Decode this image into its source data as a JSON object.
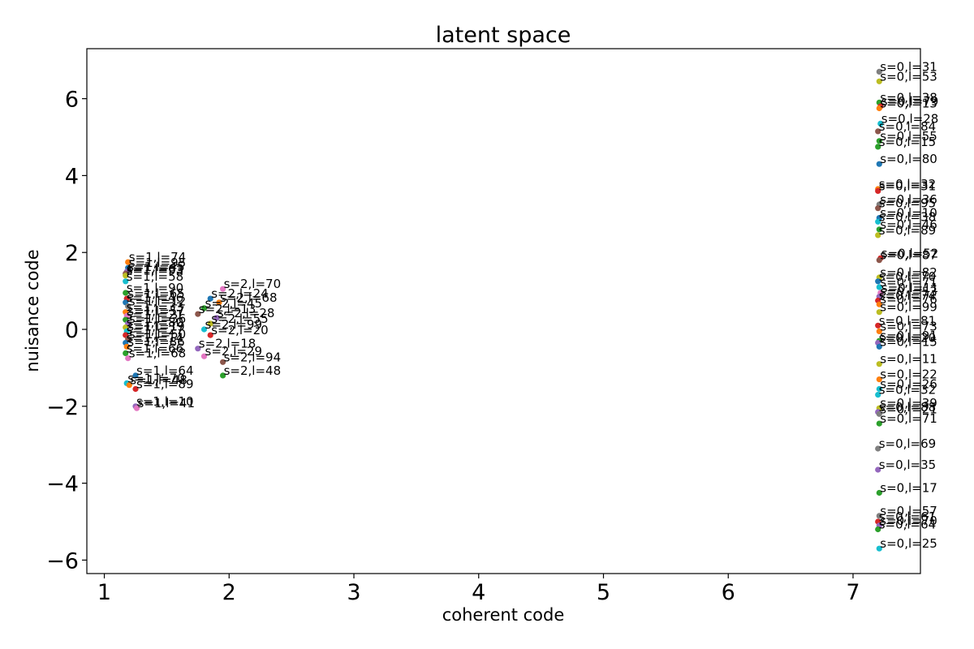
{
  "chart_data": {
    "type": "scatter",
    "title": "latent space",
    "xlabel": "coherent code",
    "ylabel": "nuisance code",
    "xlim": [
      0.86,
      7.54
    ],
    "ylim": [
      -6.35,
      7.3
    ],
    "xticks": [
      1,
      2,
      3,
      4,
      5,
      6,
      7
    ],
    "yticks": [
      -6,
      -4,
      -2,
      0,
      2,
      4,
      6
    ],
    "ytick_labels": [
      "−6",
      "−4",
      "−2",
      "0",
      "2",
      "4",
      "6"
    ],
    "grid": false,
    "points": [
      {
        "x": 1.19,
        "y": 1.75,
        "label": "s=1,l=74",
        "color": "#ff7f0e"
      },
      {
        "x": 1.19,
        "y": 1.6,
        "label": "s=1,l=95",
        "color": "#1f77b4"
      },
      {
        "x": 1.18,
        "y": 1.5,
        "label": "s=1,l=45",
        "color": "#9467bd"
      },
      {
        "x": 1.17,
        "y": 1.45,
        "label": "s=1,l=63",
        "color": "#8c564b"
      },
      {
        "x": 1.17,
        "y": 1.4,
        "label": "s=1,l=93",
        "color": "#bcbd22"
      },
      {
        "x": 1.17,
        "y": 1.25,
        "label": "s=1,l=58",
        "color": "#17becf"
      },
      {
        "x": 1.17,
        "y": 0.95,
        "label": "s=1,l=90",
        "color": "#2ca02c"
      },
      {
        "x": 1.18,
        "y": 0.8,
        "label": "s=1,l=65",
        "color": "#d62728"
      },
      {
        "x": 1.17,
        "y": 0.7,
        "label": "s=1,l=46",
        "color": "#1f77b4"
      },
      {
        "x": 1.19,
        "y": 0.6,
        "label": "s=1,l=12",
        "color": "#7f7f7f"
      },
      {
        "x": 1.17,
        "y": 0.45,
        "label": "s=1,l=33",
        "color": "#ff7f0e"
      },
      {
        "x": 1.18,
        "y": 0.35,
        "label": "s=1,l=57",
        "color": "#e377c2"
      },
      {
        "x": 1.17,
        "y": 0.25,
        "label": "s=1,l=21",
        "color": "#2ca02c"
      },
      {
        "x": 1.19,
        "y": 0.15,
        "label": "s=1,l=36",
        "color": "#9467bd"
      },
      {
        "x": 1.17,
        "y": 0.05,
        "label": "s=1,l=80",
        "color": "#bcbd22"
      },
      {
        "x": 1.18,
        "y": -0.05,
        "label": "s=1,l=19",
        "color": "#17becf"
      },
      {
        "x": 1.17,
        "y": -0.15,
        "label": "s=1,l=27",
        "color": "#d62728"
      },
      {
        "x": 1.19,
        "y": -0.25,
        "label": "s=1,l=50",
        "color": "#8c564b"
      },
      {
        "x": 1.17,
        "y": -0.35,
        "label": "s=1,l=14",
        "color": "#1f77b4"
      },
      {
        "x": 1.18,
        "y": -0.45,
        "label": "s=1,l=86",
        "color": "#ff7f0e"
      },
      {
        "x": 1.17,
        "y": -0.62,
        "label": "s=1,l=66",
        "color": "#2ca02c"
      },
      {
        "x": 1.19,
        "y": -0.75,
        "label": "s=1,l=68",
        "color": "#e377c2"
      },
      {
        "x": 1.25,
        "y": -1.2,
        "label": "s=1,l=64",
        "color": "#1f77b4"
      },
      {
        "x": 1.18,
        "y": -1.4,
        "label": "s=1,l=70",
        "color": "#17becf"
      },
      {
        "x": 1.2,
        "y": -1.45,
        "label": "s=1,l=48",
        "color": "#ff7f0e"
      },
      {
        "x": 1.25,
        "y": -1.55,
        "label": "s=1,l=89",
        "color": "#d62728"
      },
      {
        "x": 1.25,
        "y": -2.0,
        "label": "s=1,l=10",
        "color": "#9467bd"
      },
      {
        "x": 1.26,
        "y": -2.05,
        "label": "s=1,l=41",
        "color": "#e377c2"
      },
      {
        "x": 1.95,
        "y": 1.05,
        "label": "s=2,l=70",
        "color": "#e377c2"
      },
      {
        "x": 1.85,
        "y": 0.8,
        "label": "s=2,l=24",
        "color": "#1f77b4"
      },
      {
        "x": 1.92,
        "y": 0.7,
        "label": "s=2,l=68",
        "color": "#ff7f0e"
      },
      {
        "x": 1.8,
        "y": 0.55,
        "label": "s=2,l=45",
        "color": "#2ca02c"
      },
      {
        "x": 1.75,
        "y": 0.4,
        "label": "s=2,l=13",
        "color": "#8c564b"
      },
      {
        "x": 1.9,
        "y": 0.3,
        "label": "s=2,l=28",
        "color": "#9467bd"
      },
      {
        "x": 1.85,
        "y": 0.15,
        "label": "s=2,l=55",
        "color": "#bcbd22"
      },
      {
        "x": 1.8,
        "y": 0.0,
        "label": "s=2,l=99",
        "color": "#17becf"
      },
      {
        "x": 1.85,
        "y": -0.15,
        "label": "s=2,l=20",
        "color": "#d62728"
      },
      {
        "x": 1.75,
        "y": -0.5,
        "label": "s=2,l=18",
        "color": "#9467bd"
      },
      {
        "x": 1.8,
        "y": -0.7,
        "label": "s=2,l=29",
        "color": "#e377c2"
      },
      {
        "x": 1.95,
        "y": -0.85,
        "label": "s=2,l=94",
        "color": "#8c564b"
      },
      {
        "x": 1.95,
        "y": -1.2,
        "label": "s=2,l=48",
        "color": "#2ca02c"
      },
      {
        "x": 7.21,
        "y": 6.7,
        "label": "s=0,l=31",
        "color": "#7f7f7f"
      },
      {
        "x": 7.21,
        "y": 6.45,
        "label": "s=0,l=53",
        "color": "#bcbd22"
      },
      {
        "x": 7.21,
        "y": 5.9,
        "label": "s=0,l=38",
        "color": "#2ca02c"
      },
      {
        "x": 7.22,
        "y": 5.8,
        "label": "s=0,l=79",
        "color": "#d62728"
      },
      {
        "x": 7.21,
        "y": 5.75,
        "label": "s=0,l=13",
        "color": "#ff7f0e"
      },
      {
        "x": 7.22,
        "y": 5.35,
        "label": "s=0,l=28",
        "color": "#17becf"
      },
      {
        "x": 7.2,
        "y": 5.15,
        "label": "s=0,l=84",
        "color": "#8c564b"
      },
      {
        "x": 7.21,
        "y": 4.9,
        "label": "s=0,l=55",
        "color": "#2ca02c"
      },
      {
        "x": 7.2,
        "y": 4.75,
        "label": "s=0,l=15",
        "color": "#2ca02c"
      },
      {
        "x": 7.21,
        "y": 4.3,
        "label": "s=0,l=80",
        "color": "#1f77b4"
      },
      {
        "x": 7.2,
        "y": 3.65,
        "label": "s=0,l=32",
        "color": "#ff7f0e"
      },
      {
        "x": 7.2,
        "y": 3.6,
        "label": "s=0,l=31",
        "color": "#d62728"
      },
      {
        "x": 7.21,
        "y": 3.25,
        "label": "s=0,l=36",
        "color": "#7f7f7f"
      },
      {
        "x": 7.2,
        "y": 3.15,
        "label": "s=0,l=95",
        "color": "#8c564b"
      },
      {
        "x": 7.21,
        "y": 2.9,
        "label": "s=0,l=10",
        "color": "#1f77b4"
      },
      {
        "x": 7.2,
        "y": 2.8,
        "label": "s=0,l=38",
        "color": "#17becf"
      },
      {
        "x": 7.21,
        "y": 2.6,
        "label": "s=0,l=46",
        "color": "#2ca02c"
      },
      {
        "x": 7.2,
        "y": 2.45,
        "label": "s=0,l=89",
        "color": "#bcbd22"
      },
      {
        "x": 7.22,
        "y": 1.85,
        "label": "s=0,l=52",
        "color": "#d62728"
      },
      {
        "x": 7.21,
        "y": 1.8,
        "label": "s=0,l=87",
        "color": "#8c564b"
      },
      {
        "x": 7.21,
        "y": 1.35,
        "label": "s=0,l=82",
        "color": "#bcbd22"
      },
      {
        "x": 7.2,
        "y": 1.25,
        "label": "s=0,l=70",
        "color": "#1f77b4"
      },
      {
        "x": 7.21,
        "y": 1.1,
        "label": "s=0,l=71",
        "color": "#17becf"
      },
      {
        "x": 7.22,
        "y": 0.95,
        "label": "s=0,l=11",
        "color": "#e377c2"
      },
      {
        "x": 7.21,
        "y": 0.85,
        "label": "s=0,l=53",
        "color": "#9467bd"
      },
      {
        "x": 7.2,
        "y": 0.75,
        "label": "s=0,l=74",
        "color": "#d62728"
      },
      {
        "x": 7.21,
        "y": 0.65,
        "label": "s=0,l=76",
        "color": "#ff7f0e"
      },
      {
        "x": 7.21,
        "y": 0.45,
        "label": "s=0,l=99",
        "color": "#bcbd22"
      },
      {
        "x": 7.2,
        "y": 0.1,
        "label": "s=0,l=81",
        "color": "#d62728"
      },
      {
        "x": 7.21,
        "y": -0.05,
        "label": "s=0,l=73",
        "color": "#ff7f0e"
      },
      {
        "x": 7.21,
        "y": -0.3,
        "label": "s=0,l=91",
        "color": "#2ca02c"
      },
      {
        "x": 7.2,
        "y": -0.35,
        "label": "s=0,l=20",
        "color": "#9467bd"
      },
      {
        "x": 7.21,
        "y": -0.45,
        "label": "s=0,l=15",
        "color": "#1f77b4"
      },
      {
        "x": 7.21,
        "y": -0.9,
        "label": "s=0,l=11",
        "color": "#bcbd22"
      },
      {
        "x": 7.21,
        "y": -1.3,
        "label": "s=0,l=22",
        "color": "#ff7f0e"
      },
      {
        "x": 7.21,
        "y": -1.55,
        "label": "s=0,l=26",
        "color": "#17becf"
      },
      {
        "x": 7.2,
        "y": -1.7,
        "label": "s=0,l=32",
        "color": "#17becf"
      },
      {
        "x": 7.21,
        "y": -2.05,
        "label": "s=0,l=39",
        "color": "#bcbd22"
      },
      {
        "x": 7.2,
        "y": -2.15,
        "label": "s=0,l=88",
        "color": "#9467bd"
      },
      {
        "x": 7.21,
        "y": -2.2,
        "label": "s=0,l=21",
        "color": "#7f7f7f"
      },
      {
        "x": 7.21,
        "y": -2.45,
        "label": "s=0,l=71",
        "color": "#2ca02c"
      },
      {
        "x": 7.2,
        "y": -3.1,
        "label": "s=0,l=69",
        "color": "#7f7f7f"
      },
      {
        "x": 7.2,
        "y": -3.65,
        "label": "s=0,l=35",
        "color": "#9467bd"
      },
      {
        "x": 7.21,
        "y": -4.25,
        "label": "s=0,l=17",
        "color": "#2ca02c"
      },
      {
        "x": 7.21,
        "y": -4.85,
        "label": "s=0,l=57",
        "color": "#7f7f7f"
      },
      {
        "x": 7.2,
        "y": -5.0,
        "label": "s=0,l=61",
        "color": "#d62728"
      },
      {
        "x": 7.21,
        "y": -5.1,
        "label": "s=0,l=70",
        "color": "#9467bd"
      },
      {
        "x": 7.2,
        "y": -5.2,
        "label": "s=0,l=64",
        "color": "#2ca02c"
      },
      {
        "x": 7.21,
        "y": -5.7,
        "label": "s=0,l=25",
        "color": "#17becf"
      }
    ]
  }
}
